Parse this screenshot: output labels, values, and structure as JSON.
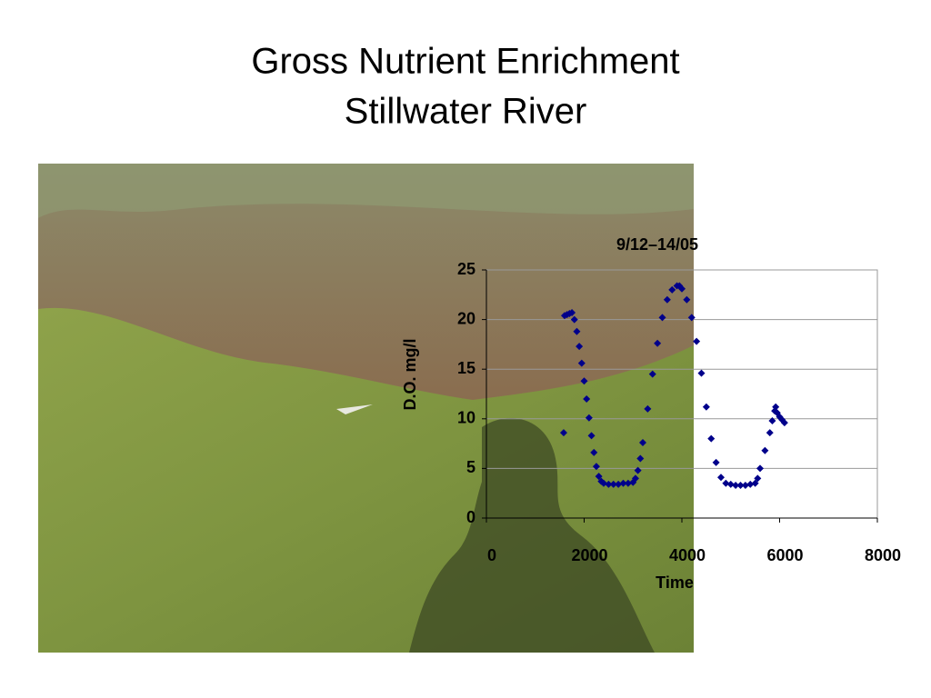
{
  "slide": {
    "title_lines": [
      "Gross Nutrient Enrichment",
      "Stillwater River"
    ]
  },
  "chart_data": {
    "type": "scatter",
    "title": "9/12–14/05",
    "x_label": "Time",
    "y_label": "D.O. mg/l",
    "color": "#00008b",
    "marker": "diamond",
    "grid": true,
    "xlim": [
      0,
      8000
    ],
    "xticks": [
      0,
      2000,
      4000,
      6000,
      8000
    ],
    "ylim": [
      0,
      25
    ],
    "yticks": [
      0,
      5,
      10,
      15,
      20,
      25
    ],
    "x": [
      1581,
      1600,
      1650,
      1700,
      1750,
      1800,
      1850,
      1900,
      1950,
      2000,
      2050,
      2100,
      2150,
      2200,
      2250,
      2300,
      2350,
      2400,
      2500,
      2600,
      2700,
      2800,
      2900,
      3000,
      3050,
      3100,
      3150,
      3200,
      3300,
      3400,
      3500,
      3600,
      3700,
      3800,
      3900,
      3950,
      4000,
      4100,
      4200,
      4300,
      4400,
      4500,
      4600,
      4700,
      4800,
      4900,
      5000,
      5100,
      5200,
      5300,
      5400,
      5500,
      5550,
      5600,
      5700,
      5800,
      5850,
      5900,
      5920,
      5950,
      6000,
      6050,
      6100
    ],
    "values": [
      8.6,
      20.4,
      20.5,
      20.6,
      20.7,
      20.0,
      18.8,
      17.3,
      15.6,
      13.8,
      12.0,
      10.1,
      8.3,
      6.6,
      5.2,
      4.2,
      3.7,
      3.5,
      3.4,
      3.4,
      3.4,
      3.5,
      3.5,
      3.6,
      4.0,
      4.8,
      6.0,
      7.6,
      11.0,
      14.5,
      17.6,
      20.2,
      22.0,
      23.0,
      23.4,
      23.4,
      23.1,
      22.0,
      20.2,
      17.8,
      14.6,
      11.2,
      8.0,
      5.6,
      4.1,
      3.5,
      3.4,
      3.3,
      3.3,
      3.3,
      3.4,
      3.5,
      4.0,
      5.0,
      6.8,
      8.6,
      9.8,
      10.8,
      11.2,
      10.6,
      10.2,
      9.9,
      9.6
    ]
  }
}
